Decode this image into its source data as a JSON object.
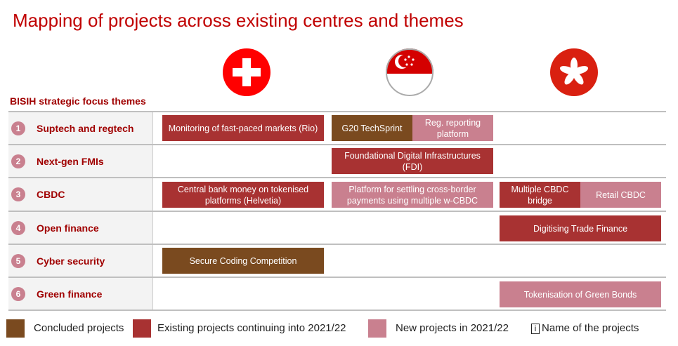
{
  "title": "Mapping of projects across existing centres and themes",
  "centres": [
    {
      "flag": "switzerland-flag-icon"
    },
    {
      "flag": "singapore-flag-icon"
    },
    {
      "flag": "hong-kong-flag-icon"
    }
  ],
  "subhead": "BISIH strategic focus themes",
  "themes": [
    {
      "num": "1",
      "label": "Suptech and regtech"
    },
    {
      "num": "2",
      "label": "Next-gen FMIs"
    },
    {
      "num": "3",
      "label": "CBDC"
    },
    {
      "num": "4",
      "label": "Open finance"
    },
    {
      "num": "5",
      "label": "Cyber security"
    },
    {
      "num": "6",
      "label": "Green finance"
    }
  ],
  "projects": {
    "rio": {
      "name": "Monitoring of fast-paced markets (Rio)",
      "status": "existing"
    },
    "techsprint": {
      "name": "G20 TechSprint",
      "status": "concluded"
    },
    "regreport": {
      "name": "Reg. reporting platform",
      "status": "new"
    },
    "fdi": {
      "name": "Foundational Digital Infrastructures (FDI)",
      "status": "existing"
    },
    "helvetia": {
      "name": "Central bank money on tokenised platforms (Helvetia)",
      "status": "existing"
    },
    "wcbdc": {
      "name": "Platform for settling cross-border payments using multiple w-CBDC",
      "status": "new"
    },
    "mcbdc": {
      "name": "Multiple CBDC bridge",
      "status": "existing"
    },
    "retail": {
      "name": "Retail CBDC",
      "status": "new"
    },
    "trade": {
      "name": "Digitising Trade Finance",
      "status": "existing"
    },
    "secure": {
      "name": "Secure Coding Competition",
      "status": "concluded"
    },
    "green": {
      "name": "Tokenisation of Green Bonds",
      "status": "new"
    }
  },
  "legend": {
    "concluded": "Concluded projects",
    "existing": "Existing projects continuing into 2021/22",
    "new": "New projects in 2021/22",
    "info_icon": "i",
    "name": "Name of the projects"
  },
  "colors": {
    "concluded": "#7a4a1f",
    "existing": "#a83232",
    "new": "#c9808f",
    "title": "#c00000"
  }
}
